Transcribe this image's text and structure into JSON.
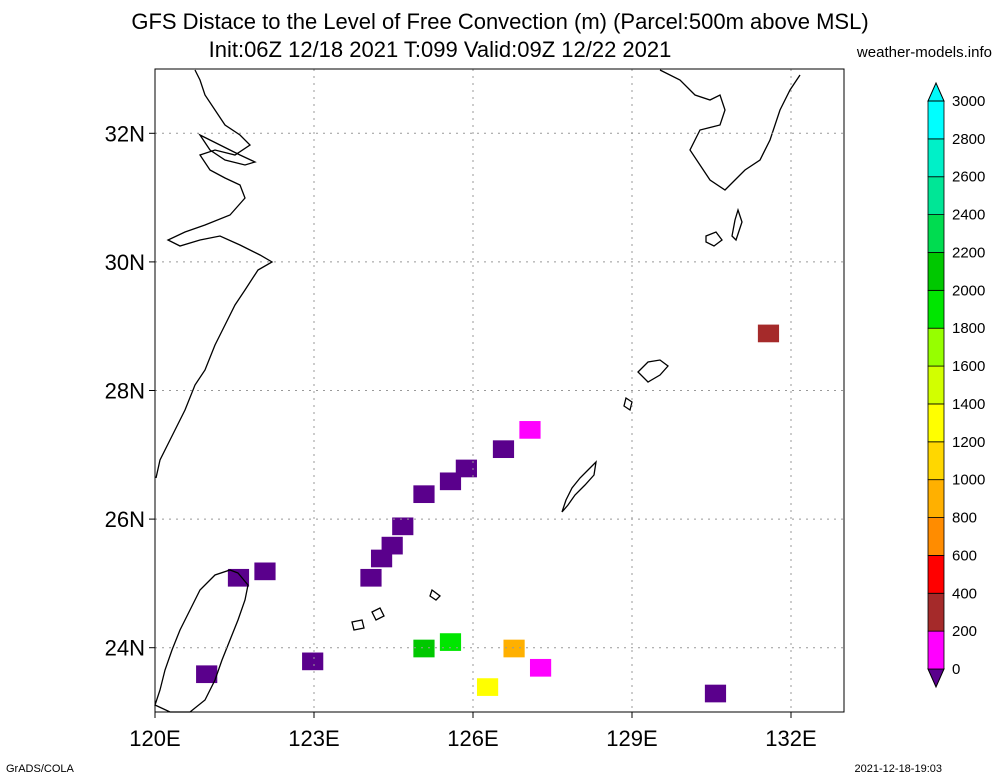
{
  "header": {
    "title_line1": "GFS Distace to the Level of Free Convection (m) (Parcel:500m above MSL)",
    "title_line2": "Init:06Z 12/18 2021 T:099 Valid:09Z 12/22 2021",
    "site": "weather-models.info"
  },
  "footer": {
    "left": "GrADS/COLA",
    "right": "2021-12-18-19:03"
  },
  "map": {
    "lon_range": [
      120,
      133
    ],
    "lat_range": [
      23,
      33
    ],
    "lon_ticks": [
      "120E",
      "123E",
      "126E",
      "129E",
      "132E"
    ],
    "lat_ticks": [
      "24N",
      "26N",
      "28N",
      "30N",
      "32N"
    ],
    "grid": true
  },
  "colorbar": {
    "levels": [
      "0",
      "200",
      "400",
      "600",
      "800",
      "1000",
      "1200",
      "1400",
      "1600",
      "1800",
      "2000",
      "2200",
      "2400",
      "2600",
      "2800",
      "3000"
    ],
    "colors": [
      "#5a008c",
      "#ff00ff",
      "#a52a2a",
      "#ff0000",
      "#ff8c00",
      "#ffb000",
      "#ffd700",
      "#ffff00",
      "#d2ff00",
      "#96ff00",
      "#00e600",
      "#00c800",
      "#00dc50",
      "#00e696",
      "#00f0c8",
      "#00ffff",
      "#00fafa"
    ]
  },
  "chart_data": {
    "type": "heatmap",
    "variable": "Distance to LFC (m)",
    "cells": [
      {
        "lon": 131.5,
        "lat": 28.9,
        "value": 500
      },
      {
        "lon": 127.0,
        "lat": 27.4,
        "value": 300
      },
      {
        "lon": 126.5,
        "lat": 27.1,
        "value": 100
      },
      {
        "lon": 125.8,
        "lat": 26.8,
        "value": 50
      },
      {
        "lon": 125.5,
        "lat": 26.6,
        "value": 50
      },
      {
        "lon": 125.0,
        "lat": 26.4,
        "value": 50
      },
      {
        "lon": 124.6,
        "lat": 25.9,
        "value": 50
      },
      {
        "lon": 124.4,
        "lat": 25.6,
        "value": 50
      },
      {
        "lon": 124.2,
        "lat": 25.4,
        "value": 50
      },
      {
        "lon": 124.0,
        "lat": 25.1,
        "value": 50
      },
      {
        "lon": 122.0,
        "lat": 25.2,
        "value": 50
      },
      {
        "lon": 121.5,
        "lat": 25.1,
        "value": 100
      },
      {
        "lon": 125.0,
        "lat": 24.0,
        "value": 2200
      },
      {
        "lon": 125.5,
        "lat": 24.1,
        "value": 2000
      },
      {
        "lon": 126.7,
        "lat": 24.0,
        "value": 1100
      },
      {
        "lon": 127.2,
        "lat": 23.7,
        "value": 200
      },
      {
        "lon": 126.2,
        "lat": 23.4,
        "value": 1500
      },
      {
        "lon": 130.5,
        "lat": 23.3,
        "value": 150
      },
      {
        "lon": 122.9,
        "lat": 23.8,
        "value": 50
      },
      {
        "lon": 120.9,
        "lat": 23.6,
        "value": 50
      }
    ]
  }
}
